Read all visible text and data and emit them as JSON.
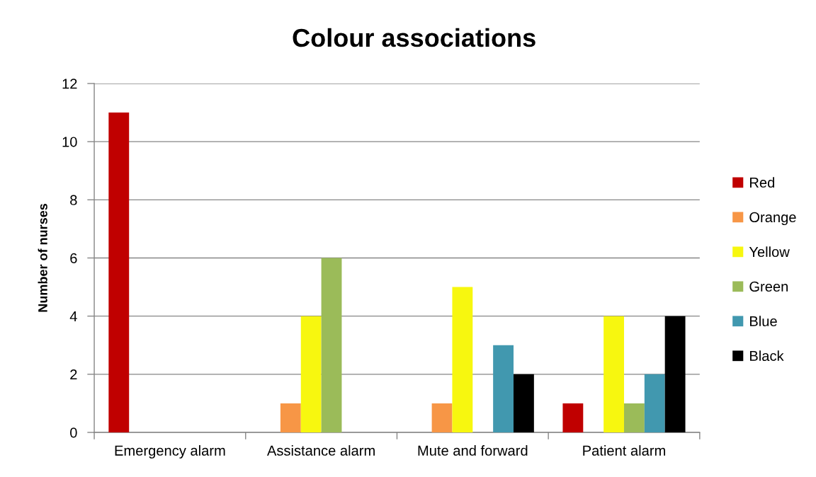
{
  "chart_data": {
    "type": "bar",
    "title": "Colour associations",
    "ylabel": "Number of nurses",
    "categories": [
      "Emergency alarm",
      "Assistance alarm",
      "Mute and forward",
      "Patient alarm"
    ],
    "series": [
      {
        "name": "Red",
        "color": "#c00000",
        "values": [
          11,
          null,
          null,
          1
        ]
      },
      {
        "name": "Orange",
        "color": "#f79646",
        "values": [
          null,
          1,
          1,
          null
        ]
      },
      {
        "name": "Yellow",
        "color": "#f7f70f",
        "values": [
          null,
          4,
          5,
          4
        ]
      },
      {
        "name": "Green",
        "color": "#9bbb59",
        "values": [
          null,
          6,
          null,
          1
        ]
      },
      {
        "name": "Blue",
        "color": "#4198af",
        "values": [
          null,
          null,
          3,
          2
        ]
      },
      {
        "name": "Black",
        "color": "#000000",
        "values": [
          null,
          null,
          2,
          4
        ]
      }
    ],
    "ylim": [
      0,
      12
    ],
    "yticks": [
      0,
      2,
      4,
      6,
      8,
      10,
      12
    ],
    "grid": "y",
    "legend": "right"
  }
}
